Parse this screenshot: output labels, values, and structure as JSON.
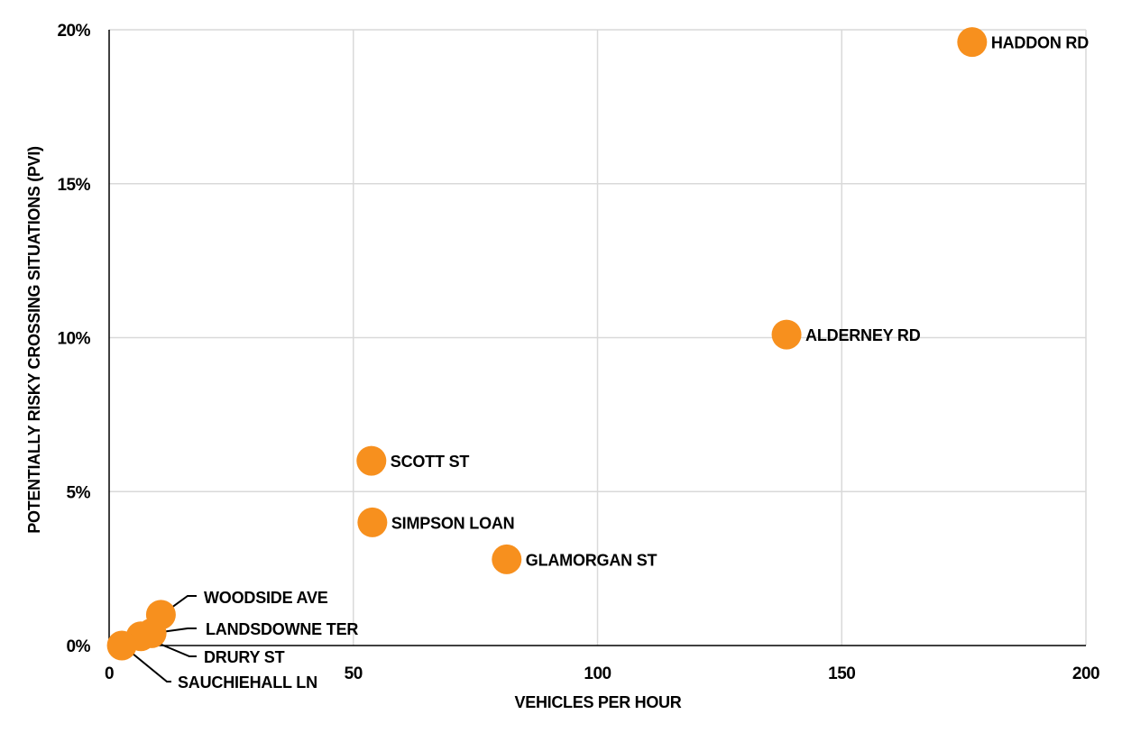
{
  "chart_data": {
    "type": "scatter",
    "title": "",
    "xlabel": "VEHICLES PER HOUR",
    "ylabel": "POTENTIALLY RISKY CROSSING SITUATIONS (PVI)",
    "xlim": [
      0,
      200
    ],
    "ylim": [
      0,
      20
    ],
    "x_ticks": [
      0,
      50,
      100,
      150,
      200
    ],
    "y_ticks": [
      0,
      5,
      10,
      15,
      20
    ],
    "x_tick_labels": [
      "0",
      "50",
      "100",
      "150",
      "200"
    ],
    "y_tick_labels": [
      "0%",
      "5%",
      "10%",
      "15%",
      "20%"
    ],
    "grid": true,
    "legend": null,
    "marker_color": "#F7901E",
    "points": [
      {
        "label": "HADDON RD",
        "x": 176.7,
        "y": 19.6
      },
      {
        "label": "ALDERNEY RD",
        "x": 138.7,
        "y": 10.1
      },
      {
        "label": "SCOTT ST",
        "x": 53.7,
        "y": 6.0
      },
      {
        "label": "SIMPSON LOAN",
        "x": 53.9,
        "y": 4.0
      },
      {
        "label": "GLAMORGAN ST",
        "x": 81.4,
        "y": 2.8
      },
      {
        "label": "WOODSIDE AVE",
        "x": 10.6,
        "y": 1.0
      },
      {
        "label": "LANDSDOWNE TER",
        "x": 8.7,
        "y": 0.4
      },
      {
        "label": "DRURY ST",
        "x": 6.5,
        "y": 0.3
      },
      {
        "label": "SAUCHIEHALL LN",
        "x": 2.6,
        "y": 0.0
      }
    ]
  },
  "label_layout": {
    "HADDON RD": {
      "mode": "right"
    },
    "ALDERNEY RD": {
      "mode": "right"
    },
    "SCOTT ST": {
      "mode": "right"
    },
    "SIMPSON LOAN": {
      "mode": "right"
    },
    "GLAMORGAN ST": {
      "mode": "right"
    },
    "WOODSIDE AVE": {
      "mode": "leader",
      "elbow": [
        208,
        661
      ],
      "end": [
        218,
        661
      ],
      "text": [
        226,
        669
      ]
    },
    "LANDSDOWNE TER": {
      "mode": "leader",
      "elbow": [
        208,
        697
      ],
      "end": [
        218,
        697
      ],
      "text": [
        228,
        704
      ]
    },
    "DRURY ST": {
      "mode": "leader",
      "elbow": [
        210,
        728
      ],
      "end": [
        218,
        728
      ],
      "text": [
        226,
        735
      ]
    },
    "SAUCHIEHALL LN": {
      "mode": "leader",
      "elbow": [
        185,
        756
      ],
      "end": [
        190,
        756
      ],
      "text": [
        197,
        763
      ]
    }
  }
}
